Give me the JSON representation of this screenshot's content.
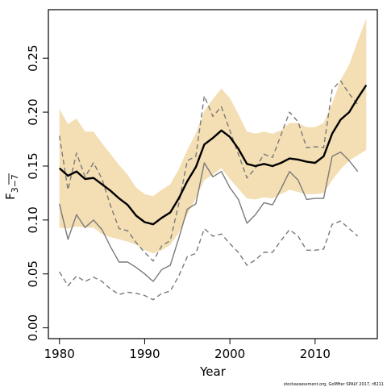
{
  "chart_data": {
    "type": "line",
    "xlabel": "Year",
    "ylabel": "F",
    "ylabel_sub": "3−7",
    "credit": "stockassessment.org, GoMHer SPALY 2017, r8211",
    "xlim": [
      1978.7,
      2017.3
    ],
    "ylim": [
      -0.01,
      0.295
    ],
    "x_ticks": [
      1980,
      1990,
      2000,
      2010
    ],
    "y_ticks": [
      "0.00",
      "0.05",
      "0.10",
      "0.15",
      "0.20",
      "0.25"
    ],
    "colors": {
      "band": "#f4deb3",
      "estimate": "#000000",
      "previous": "#7a7a7a"
    },
    "series": [
      {
        "style": "band",
        "x": [
          1980,
          1981,
          1982,
          1983,
          1984,
          1985,
          1986,
          1987,
          1988,
          1989,
          1990,
          1991,
          1992,
          1993,
          1994,
          1995,
          1996,
          1997,
          1998,
          1999,
          2000,
          2001,
          2002,
          2003,
          2004,
          2005,
          2006,
          2007,
          2008,
          2009,
          2010,
          2011,
          2012,
          2013,
          2014,
          2015,
          2016
        ],
        "upper": [
          0.203,
          0.189,
          0.194,
          0.182,
          0.182,
          0.171,
          0.161,
          0.151,
          0.142,
          0.13,
          0.124,
          0.122,
          0.128,
          0.133,
          0.147,
          0.165,
          0.18,
          0.201,
          0.212,
          0.222,
          0.213,
          0.198,
          0.182,
          0.18,
          0.182,
          0.18,
          0.183,
          0.19,
          0.19,
          0.186,
          0.186,
          0.19,
          0.208,
          0.23,
          0.244,
          0.266,
          0.287
        ],
        "lower": [
          0.093,
          0.092,
          0.094,
          0.093,
          0.093,
          0.087,
          0.084,
          0.082,
          0.08,
          0.077,
          0.072,
          0.069,
          0.072,
          0.077,
          0.088,
          0.105,
          0.12,
          0.137,
          0.142,
          0.148,
          0.138,
          0.129,
          0.12,
          0.119,
          0.121,
          0.12,
          0.124,
          0.128,
          0.126,
          0.124,
          0.124,
          0.125,
          0.137,
          0.147,
          0.155,
          0.16,
          0.165
        ]
      },
      {
        "style": "estimate",
        "x": [
          1980,
          1981,
          1982,
          1983,
          1984,
          1985,
          1986,
          1987,
          1988,
          1989,
          1990,
          1991,
          1992,
          1993,
          1994,
          1995,
          1996,
          1997,
          1998,
          1999,
          2000,
          2001,
          2002,
          2003,
          2004,
          2005,
          2006,
          2007,
          2008,
          2009,
          2010,
          2011,
          2012,
          2013,
          2014,
          2015,
          2016
        ],
        "values": [
          0.148,
          0.141,
          0.145,
          0.138,
          0.139,
          0.133,
          0.127,
          0.12,
          0.114,
          0.104,
          0.098,
          0.096,
          0.102,
          0.107,
          0.12,
          0.136,
          0.149,
          0.17,
          0.176,
          0.183,
          0.177,
          0.166,
          0.152,
          0.15,
          0.152,
          0.15,
          0.153,
          0.157,
          0.156,
          0.154,
          0.153,
          0.159,
          0.18,
          0.193,
          0.2,
          0.213,
          0.225
        ]
      },
      {
        "style": "previous-dashed",
        "x": [
          1980,
          1981,
          1982,
          1983,
          1984,
          1985,
          1986,
          1987,
          1988,
          1989,
          1990,
          1991,
          1992,
          1993,
          1994,
          1995,
          1996,
          1997,
          1998,
          1999,
          2000,
          2001,
          2002,
          2003,
          2004,
          2005,
          2006,
          2007,
          2008,
          2009,
          2010,
          2011,
          2012,
          2013,
          2014,
          2015
        ],
        "values": [
          0.178,
          0.128,
          0.162,
          0.14,
          0.153,
          0.138,
          0.113,
          0.092,
          0.09,
          0.079,
          0.07,
          0.062,
          0.076,
          0.081,
          0.115,
          0.155,
          0.159,
          0.215,
          0.196,
          0.205,
          0.183,
          0.161,
          0.139,
          0.148,
          0.161,
          0.158,
          0.179,
          0.2,
          0.191,
          0.167,
          0.168,
          0.167,
          0.221,
          0.229,
          0.217,
          0.207
        ]
      },
      {
        "style": "previous-lower",
        "x": [
          1980,
          1981,
          1982,
          1983,
          1984,
          1985,
          1986,
          1987,
          1988,
          1989,
          1990,
          1991,
          1992,
          1993,
          1994,
          1995,
          1996,
          1997,
          1998,
          1999,
          2000,
          2001,
          2002,
          2003,
          2004,
          2005,
          2006,
          2007,
          2008,
          2009,
          2010,
          2011,
          2012,
          2013,
          2014,
          2015
        ],
        "values": [
          0.115,
          0.082,
          0.105,
          0.093,
          0.1,
          0.091,
          0.075,
          0.061,
          0.061,
          0.056,
          0.05,
          0.043,
          0.054,
          0.058,
          0.083,
          0.11,
          0.115,
          0.153,
          0.14,
          0.145,
          0.13,
          0.119,
          0.097,
          0.105,
          0.116,
          0.114,
          0.129,
          0.145,
          0.137,
          0.119,
          0.12,
          0.12,
          0.159,
          0.163,
          0.155,
          0.145
        ]
      },
      {
        "style": "previous-lower-dashed",
        "x": [
          1980,
          1981,
          1982,
          1983,
          1984,
          1985,
          1986,
          1987,
          1988,
          1989,
          1990,
          1991,
          1992,
          1993,
          1994,
          1995,
          1996,
          1997,
          1998,
          1999,
          2000,
          2001,
          2002,
          2003,
          2004,
          2005,
          2006,
          2007,
          2008,
          2009,
          2010,
          2011,
          2012,
          2013,
          2014,
          2015
        ],
        "values": [
          0.052,
          0.039,
          0.048,
          0.043,
          0.047,
          0.043,
          0.036,
          0.031,
          0.033,
          0.032,
          0.03,
          0.026,
          0.032,
          0.034,
          0.048,
          0.066,
          0.069,
          0.092,
          0.085,
          0.087,
          0.078,
          0.07,
          0.058,
          0.063,
          0.07,
          0.07,
          0.081,
          0.091,
          0.085,
          0.072,
          0.072,
          0.073,
          0.096,
          0.099,
          0.092,
          0.085
        ]
      }
    ]
  }
}
